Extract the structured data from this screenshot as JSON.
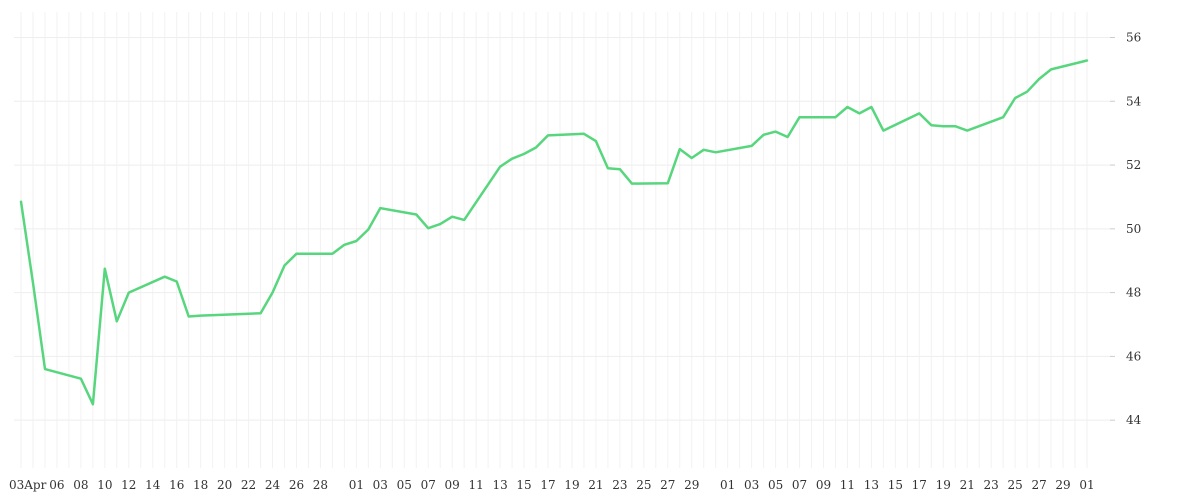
{
  "chart_data": {
    "type": "line",
    "title": "",
    "xlabel": "",
    "ylabel": "",
    "ylim": [
      42.5,
      56.8
    ],
    "grid": true,
    "legend": "none",
    "color": "#57d67e",
    "x_tick_labels": [
      "03Apr",
      "06",
      "08",
      "10",
      "12",
      "14",
      "16",
      "18",
      "20",
      "22",
      "24",
      "26",
      "28",
      "01",
      "03",
      "05",
      "07",
      "09",
      "11",
      "13",
      "15",
      "17",
      "19",
      "21",
      "23",
      "25",
      "27",
      "29",
      "01",
      "03",
      "05",
      "07",
      "09",
      "11",
      "13",
      "15",
      "17",
      "19",
      "21",
      "23",
      "25",
      "27",
      "29",
      "01"
    ],
    "y_ticks": [
      44,
      46,
      48,
      50,
      52,
      54,
      56
    ],
    "series": [
      {
        "name": "",
        "x": [
          "2023-04-03",
          "2023-04-04",
          "2023-04-05",
          "2023-04-08",
          "2023-04-09",
          "2023-04-10",
          "2023-04-11",
          "2023-04-12",
          "2023-04-15",
          "2023-04-16",
          "2023-04-17",
          "2023-04-18",
          "2023-04-23",
          "2023-04-24",
          "2023-04-25",
          "2023-04-26",
          "2023-04-29",
          "2023-04-30",
          "2023-05-01",
          "2023-05-02",
          "2023-05-03",
          "2023-05-06",
          "2023-05-07",
          "2023-05-08",
          "2023-05-09",
          "2023-05-10",
          "2023-05-13",
          "2023-05-14",
          "2023-05-15",
          "2023-05-16",
          "2023-05-17",
          "2023-05-20",
          "2023-05-21",
          "2023-05-22",
          "2023-05-23",
          "2023-05-24",
          "2023-05-27",
          "2023-05-28",
          "2023-05-29",
          "2023-05-30",
          "2023-05-31",
          "2023-06-03",
          "2023-06-04",
          "2023-06-05",
          "2023-06-06",
          "2023-06-07",
          "2023-06-10",
          "2023-06-11",
          "2023-06-12",
          "2023-06-13",
          "2023-06-14",
          "2023-06-17",
          "2023-06-18",
          "2023-06-19",
          "2023-06-20",
          "2023-06-21",
          "2023-06-24",
          "2023-06-25",
          "2023-06-26",
          "2023-06-27",
          "2023-06-28",
          "2023-07-01"
        ],
        "values": [
          50.85,
          48.3,
          45.6,
          45.3,
          44.5,
          48.75,
          47.1,
          48.0,
          48.5,
          48.35,
          47.25,
          47.28,
          47.35,
          48.0,
          48.85,
          49.22,
          49.22,
          49.5,
          49.62,
          49.98,
          50.65,
          50.45,
          50.02,
          50.15,
          50.38,
          50.28,
          51.95,
          52.2,
          52.35,
          52.55,
          52.93,
          52.98,
          52.75,
          51.9,
          51.87,
          51.42,
          51.43,
          52.5,
          52.22,
          52.48,
          52.4,
          52.6,
          52.95,
          53.05,
          52.88,
          53.5,
          53.5,
          53.82,
          53.62,
          53.82,
          53.08,
          53.62,
          53.25,
          53.22,
          53.22,
          53.08,
          53.5,
          54.1,
          54.3,
          54.7,
          55.0,
          55.28
        ]
      }
    ]
  }
}
